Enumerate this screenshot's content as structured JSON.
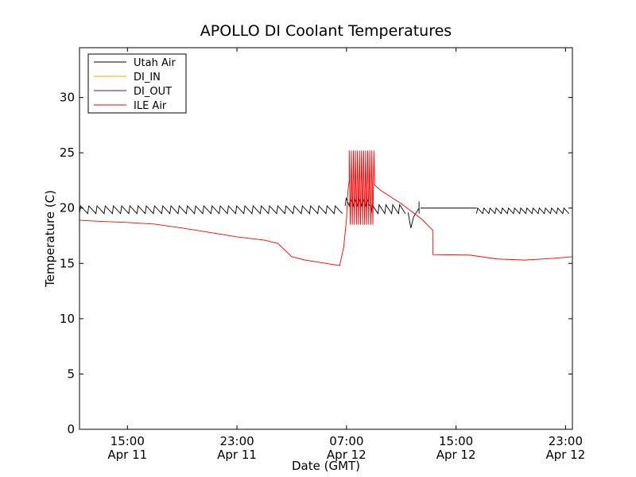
{
  "chart_data": {
    "type": "line",
    "title": "APOLLO DI Coolant Temperatures",
    "xlabel": "Date (GMT)",
    "ylabel": "Temperature (C)",
    "xlim": [
      11.5,
      47.5
    ],
    "ylim": [
      0,
      34.5
    ],
    "grid": false,
    "legend_position": "top-left",
    "x_ticks": [
      {
        "value": 15,
        "line1": "15:00",
        "line2": "Apr 11"
      },
      {
        "value": 23,
        "line1": "23:00",
        "line2": "Apr 11"
      },
      {
        "value": 31,
        "line1": "07:00",
        "line2": "Apr 12"
      },
      {
        "value": 39,
        "line1": "15:00",
        "line2": "Apr 12"
      },
      {
        "value": 47,
        "line1": "23:00",
        "line2": "Apr 12"
      }
    ],
    "y_ticks": [
      0,
      5,
      10,
      15,
      20,
      25,
      30
    ],
    "series": [
      {
        "name": "Utah Air",
        "color": "#000000",
        "pattern": "sawtooth",
        "segments": [
          {
            "x_start": 11.5,
            "x_end": 30.9,
            "low": 19.5,
            "high": 20.2,
            "period": 0.6
          },
          {
            "x_start": 30.9,
            "x_end": 32.8,
            "low": 20.2,
            "high": 20.9,
            "period": 0.3
          },
          {
            "x_start": 32.8,
            "x_end": 35.5,
            "low": 19.5,
            "high": 20.3,
            "period": 0.5
          },
          {
            "x_start": 36.4,
            "x_end": 40.5,
            "low": 20.0,
            "high": 20.0,
            "period": 0
          },
          {
            "x_start": 40.5,
            "x_end": 47.5,
            "low": 19.5,
            "high": 20.0,
            "period": 0.45
          }
        ],
        "points": [
          [
            35.5,
            19.6
          ],
          [
            35.7,
            18.2
          ],
          [
            35.9,
            19.2
          ],
          [
            36.3,
            20.0
          ],
          [
            36.3,
            20.6
          ],
          [
            36.3,
            19.5
          ]
        ]
      },
      {
        "name": "DI_IN",
        "color": "#ffa500",
        "points": []
      },
      {
        "name": "DI_OUT",
        "color": "#800080",
        "points": []
      },
      {
        "name": "ILE Air",
        "color": "#ff0000",
        "points": [
          [
            11.5,
            18.9
          ],
          [
            13,
            18.8
          ],
          [
            15,
            18.7
          ],
          [
            17,
            18.55
          ],
          [
            19,
            18.2
          ],
          [
            21,
            17.8
          ],
          [
            23,
            17.4
          ],
          [
            25,
            17.1
          ],
          [
            26,
            16.8
          ],
          [
            27,
            15.6
          ],
          [
            28,
            15.3
          ],
          [
            29,
            15.1
          ],
          [
            30,
            14.9
          ],
          [
            30.5,
            14.8
          ],
          [
            30.8,
            16.5
          ],
          [
            31.0,
            19.0
          ],
          [
            31.1,
            21.5
          ],
          [
            31.2,
            22.5
          ]
        ],
        "oscillation": {
          "x_start": 31.2,
          "x_end": 33.05,
          "low": 18.5,
          "high": 25.2,
          "period": 0.15
        },
        "points_after": [
          [
            33.05,
            22.1
          ],
          [
            33.5,
            21.6
          ],
          [
            35,
            20.4
          ],
          [
            36.5,
            19.0
          ],
          [
            37.3,
            18.0
          ],
          [
            37.3,
            15.8
          ],
          [
            40,
            15.75
          ],
          [
            42,
            15.4
          ],
          [
            44,
            15.3
          ],
          [
            46,
            15.45
          ],
          [
            47.5,
            15.6
          ]
        ]
      }
    ]
  }
}
